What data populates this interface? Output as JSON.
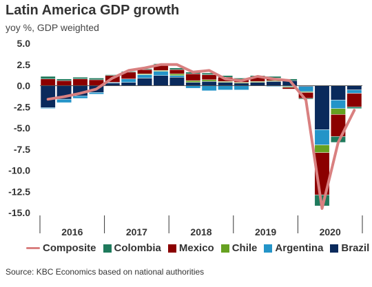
{
  "header": {
    "title": "Latin America GDP growth",
    "subtitle": "yoy %, GDP weighted"
  },
  "source": "Source: KBC Economics based on national authorities",
  "chart_data": {
    "type": "bar",
    "stacked": true,
    "title": "Latin America GDP growth",
    "subtitle": "yoy %, GDP weighted",
    "ylim": [
      -15,
      5
    ],
    "y_ticks": [
      5.0,
      2.5,
      0.0,
      -2.5,
      -5.0,
      -7.5,
      -10.0,
      -12.5,
      -15.0
    ],
    "y_tick_labels": [
      "5.0",
      "2.5",
      "0.0",
      "-2.5",
      "-5.0",
      "-7.5",
      "-10.0",
      "-12.5",
      "-15.0"
    ],
    "grid": false,
    "year_labels": [
      "2016",
      "2017",
      "2018",
      "2019",
      "2020"
    ],
    "categories": [
      "2016Q1",
      "2016Q2",
      "2016Q3",
      "2016Q4",
      "2017Q1",
      "2017Q2",
      "2017Q3",
      "2017Q4",
      "2018Q1",
      "2018Q2",
      "2018Q3",
      "2018Q4",
      "2019Q1",
      "2019Q2",
      "2019Q3",
      "2019Q4",
      "2020Q1",
      "2020Q2",
      "2020Q3",
      "2020Q4"
    ],
    "series": [
      {
        "name": "Brazil",
        "color": "#0a2a5c",
        "values": [
          -2.6,
          -1.6,
          -1.2,
          -0.8,
          0.3,
          0.4,
          0.9,
          1.2,
          1.0,
          0.4,
          0.5,
          0.4,
          0.3,
          0.4,
          0.5,
          0.6,
          -0.1,
          -5.2,
          -1.7,
          -0.5
        ]
      },
      {
        "name": "Argentina",
        "color": "#2494c8",
        "values": [
          -0.1,
          -0.4,
          -0.3,
          -0.2,
          0.1,
          0.4,
          0.4,
          0.5,
          0.2,
          -0.3,
          -0.6,
          -0.5,
          -0.5,
          0.0,
          -0.1,
          -0.1,
          -0.6,
          -1.8,
          -1.0,
          -0.4
        ]
      },
      {
        "name": "Chile",
        "color": "#66a121",
        "values": [
          0.0,
          0.0,
          0.0,
          0.0,
          0.0,
          0.0,
          0.1,
          0.1,
          0.2,
          0.2,
          0.2,
          0.1,
          0.1,
          0.1,
          0.1,
          -0.1,
          -0.1,
          -0.9,
          -0.7,
          0.0
        ]
      },
      {
        "name": "Mexico",
        "color": "#8b0000",
        "values": [
          0.8,
          0.6,
          0.8,
          0.7,
          0.8,
          0.8,
          0.5,
          0.7,
          0.5,
          0.8,
          0.6,
          0.5,
          0.3,
          0.5,
          0.3,
          -0.2,
          -0.7,
          -5.0,
          -2.6,
          -1.6
        ]
      },
      {
        "name": "Colombia",
        "color": "#1f7a5c",
        "values": [
          0.3,
          0.2,
          0.2,
          0.2,
          0.1,
          0.1,
          0.1,
          0.1,
          0.2,
          0.2,
          0.2,
          0.2,
          0.2,
          0.2,
          0.2,
          0.2,
          -0.1,
          -1.3,
          -0.7,
          -0.2
        ]
      },
      {
        "name": "Composite",
        "type": "line",
        "color": "#d98080",
        "values": [
          -1.6,
          -1.3,
          -0.9,
          -0.4,
          0.9,
          1.8,
          2.1,
          2.5,
          2.5,
          1.6,
          1.8,
          0.8,
          0.6,
          1.1,
          0.8,
          0.6,
          -1.7,
          -14.5,
          -6.7,
          -2.9
        ]
      }
    ],
    "legend": {
      "position": "bottom",
      "entries": [
        "Composite",
        "Colombia",
        "Mexico",
        "Chile",
        "Argentina",
        "Brazil"
      ]
    }
  }
}
